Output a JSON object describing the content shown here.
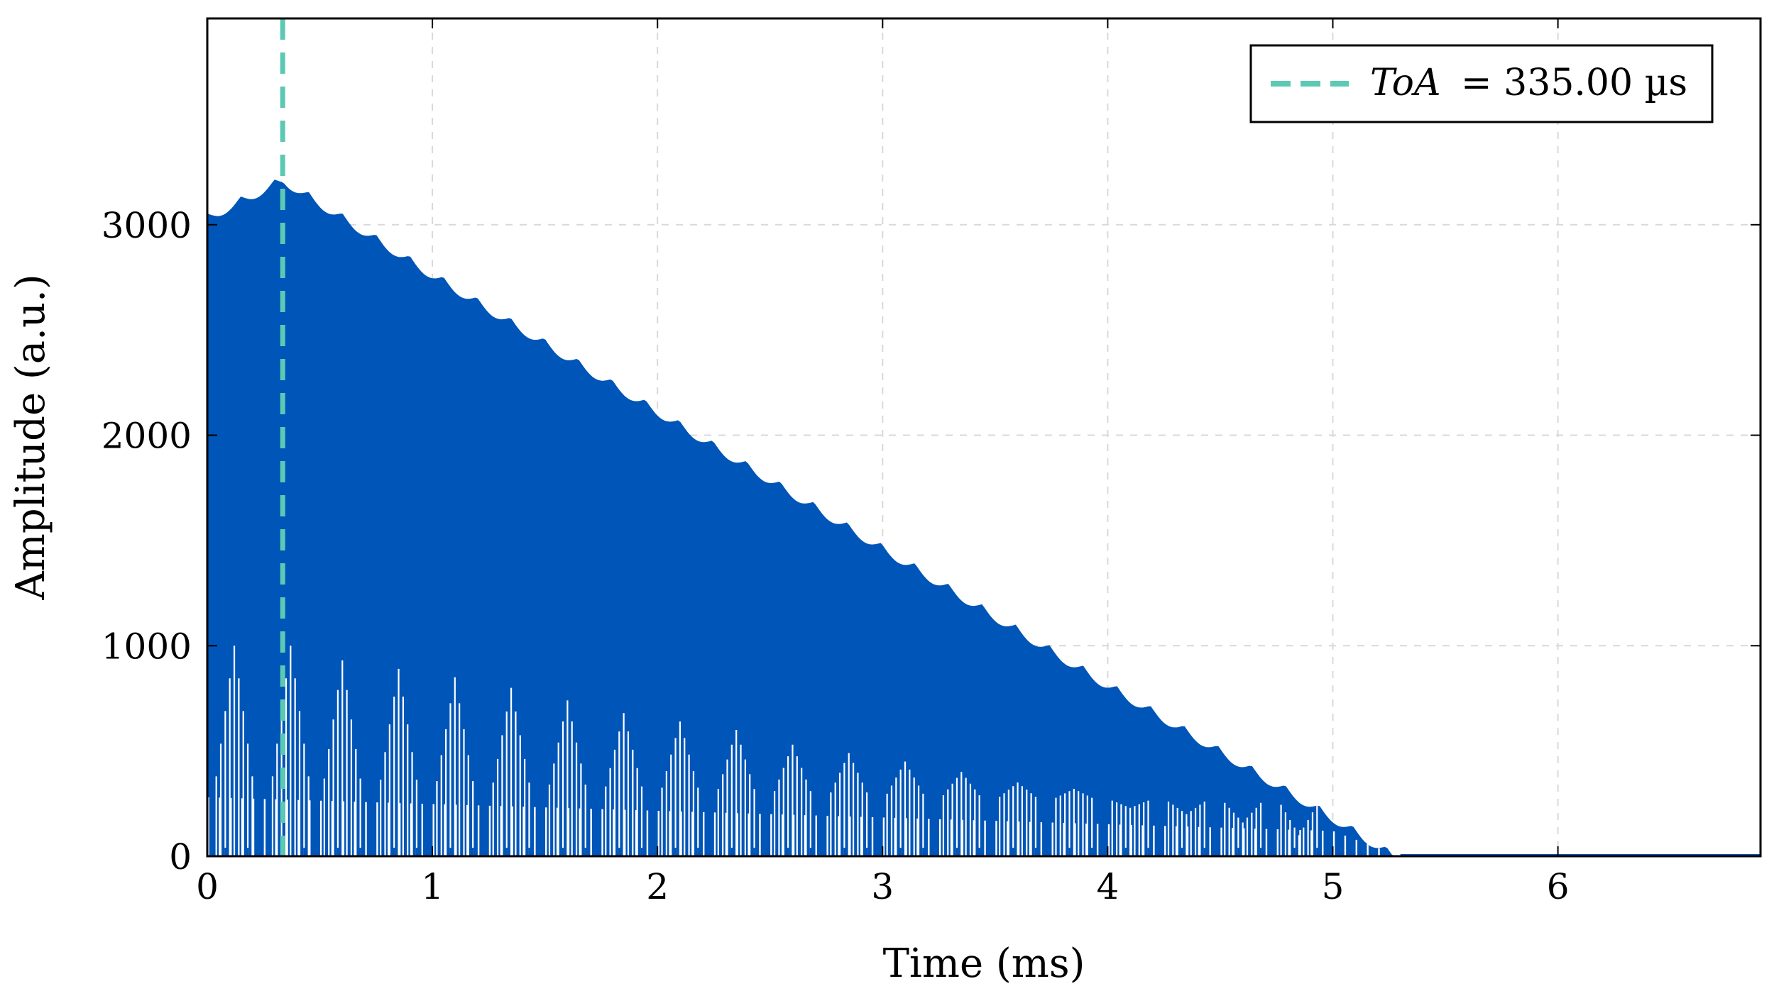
{
  "chart_data": {
    "type": "area",
    "xlabel": "Time (ms)",
    "ylabel": "Amplitude (a.u.)",
    "xlim": [
      0,
      6.9
    ],
    "ylim": [
      0,
      3980
    ],
    "xticks": [
      0,
      1,
      2,
      3,
      4,
      5,
      6
    ],
    "yticks": [
      0,
      1000,
      2000,
      3000
    ],
    "grid": true,
    "legend_position": "top-right",
    "colors": {
      "signal": "#0055b8",
      "toa_line": "#5cc9b4"
    },
    "series": [
      {
        "style": "filled-oscillation",
        "envelope_max": [
          [
            0,
            3050
          ],
          [
            0.335,
            3230
          ],
          [
            1.0,
            2780
          ],
          [
            2.0,
            2130
          ],
          [
            3.0,
            1480
          ],
          [
            4.0,
            830
          ],
          [
            5.0,
            200
          ],
          [
            5.3,
            0
          ],
          [
            6.9,
            0
          ]
        ],
        "trough_peaks": [
          [
            0.12,
            1000
          ],
          [
            0.37,
            1000
          ],
          [
            0.6,
            930
          ],
          [
            0.85,
            890
          ],
          [
            1.1,
            850
          ],
          [
            1.35,
            800
          ],
          [
            1.6,
            740
          ],
          [
            1.85,
            680
          ],
          [
            2.1,
            640
          ],
          [
            2.35,
            600
          ],
          [
            2.6,
            530
          ],
          [
            2.85,
            490
          ],
          [
            3.1,
            450
          ],
          [
            3.35,
            400
          ],
          [
            3.6,
            350
          ],
          [
            3.85,
            320
          ],
          [
            4.1,
            230
          ],
          [
            4.35,
            200
          ],
          [
            4.6,
            160
          ],
          [
            4.85,
            100
          ]
        ]
      }
    ],
    "annotations": [
      {
        "kind": "vertical-dashed-line",
        "x": 0.335,
        "legend_var": "ToA",
        "legend_value": "= 335.00 µs"
      }
    ]
  }
}
